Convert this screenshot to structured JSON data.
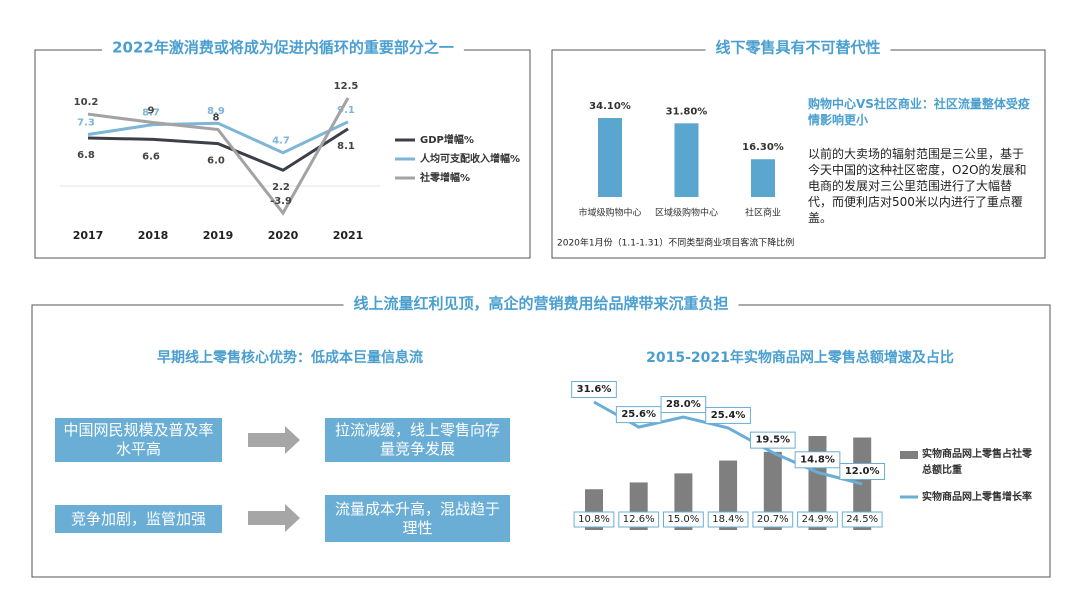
{
  "chart_data": [
    {
      "type": "line",
      "title": "2022年激消费或将成为促进内循环的重要部分之一",
      "categories": [
        "2017",
        "2018",
        "2019",
        "2020",
        "2021"
      ],
      "series": [
        {
          "name": "GDP增幅%",
          "color": "#3b3f48",
          "values": [
            6.8,
            6.6,
            6.0,
            2.2,
            8.1
          ],
          "value_labels": [
            "6.8",
            "6.6",
            "6.0",
            "2.2",
            "8.1"
          ]
        },
        {
          "name": "人均可支配收入增幅%",
          "color": "#7db6d6",
          "values": [
            7.3,
            8.7,
            8.9,
            4.7,
            9.1
          ]
        },
        {
          "name": "社零增幅%",
          "color": "#a3a3a3",
          "values": [
            10.2,
            9,
            8,
            -3.9,
            12.5
          ]
        }
      ]
    },
    {
      "type": "bar",
      "title": "线下零售具有不可替代性",
      "categories": [
        "市域级购物中心",
        "区域级购物中心",
        "社区商业"
      ],
      "values": [
        34.1,
        31.8,
        16.3
      ],
      "value_labels": [
        "34.10%",
        "31.80%",
        "16.30%"
      ],
      "color": "#5aa6cf",
      "caption": "2020年1月份（1.1-1.31）不同类型商业项目客流下降比例"
    },
    {
      "type": "combo",
      "title": "2015-2021年实物商品网上零售总额增速及占比",
      "categories": [
        null,
        null,
        null,
        null,
        null,
        null,
        null
      ],
      "series": [
        {
          "name": "实物商品网上零售占社零总额比重",
          "type": "bar",
          "color": "#7f7f7f",
          "values": [
            10.8,
            12.6,
            15.0,
            18.4,
            20.7,
            24.9,
            24.5
          ],
          "value_labels": [
            "10.8%",
            "12.6%",
            "15.0%",
            "18.4%",
            "20.7%",
            "24.9%",
            "24.5%"
          ]
        },
        {
          "name": "实物商品网上零售增长率",
          "type": "line",
          "color": "#6aaed6",
          "values": [
            31.6,
            25.6,
            28.0,
            25.4,
            19.5,
            14.8,
            12.0
          ],
          "value_labels": [
            "31.6%",
            "25.6%",
            "28.0%",
            "25.4%",
            "19.5%",
            "14.8%",
            "12.0%"
          ]
        }
      ]
    }
  ],
  "offline_note": {
    "subtitle": "购物中心VS社区商业：社区流量整体受疫情影响更小",
    "text": "以前的大卖场的辐射范围是三公里，基于今天中国的这种社区密度，O2O的发展和电商的发展对三公里范围进行了大幅替代，而便利店对500米以内进行了重点覆盖。"
  },
  "online_section": {
    "title": "线上流量红利见顶，高企的营销费用给品牌带来沉重负担",
    "left_title": "早期线上零售核心优势：低成本巨量信息流",
    "flows": [
      [
        "中国网民规模及普及率水平高",
        "拉流减缓，线上零售向存量竞争发展"
      ],
      [
        "竞争加剧，监管加强",
        "流量成本升高，混战趋于理性"
      ]
    ]
  }
}
